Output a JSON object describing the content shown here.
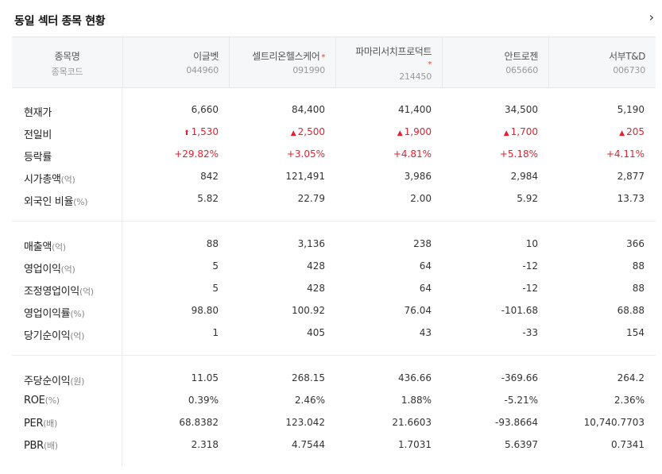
{
  "title": "동일 섹터 종목 현황",
  "header": {
    "label_name": "종목명",
    "label_code": "종목코드",
    "stocks": [
      {
        "name": "이글벳",
        "code": "044960",
        "star": false
      },
      {
        "name": "셀트리온헬스케어",
        "code": "091990",
        "star": true
      },
      {
        "name": "파마리서치프로덕트",
        "code": "214450",
        "star": true
      },
      {
        "name": "안트로젠",
        "code": "065660",
        "star": false
      },
      {
        "name": "서부T&D",
        "code": "006730",
        "star": false
      }
    ],
    "star_symbol": "*"
  },
  "rows": [
    {
      "label": "현재가",
      "unit": "",
      "values": [
        "6,660",
        "84,400",
        "41,400",
        "34,500",
        "5,190"
      ]
    },
    {
      "label": "전일비",
      "unit": "",
      "red": true,
      "symbols": [
        "⬆",
        "▲",
        "▲",
        "▲",
        "▲"
      ],
      "values": [
        "1,530",
        "2,500",
        "1,900",
        "1,700",
        "205"
      ]
    },
    {
      "label": "등락률",
      "unit": "",
      "red": true,
      "values": [
        "+29.82%",
        "+3.05%",
        "+4.81%",
        "+5.18%",
        "+4.11%"
      ]
    },
    {
      "label": "시가총액",
      "unit": "(억)",
      "values": [
        "842",
        "121,491",
        "3,986",
        "2,984",
        "2,877"
      ]
    },
    {
      "label": "외국인 비율",
      "unit": "(%)",
      "values": [
        "5.82",
        "22.79",
        "2.00",
        "5.92",
        "13.73"
      ]
    },
    {
      "label": "매출액",
      "unit": "(억)",
      "values": [
        "88",
        "3,136",
        "238",
        "10",
        "366"
      ]
    },
    {
      "label": "영업이익",
      "unit": "(억)",
      "values": [
        "5",
        "428",
        "64",
        "-12",
        "88"
      ]
    },
    {
      "label": "조정영업이익",
      "unit": "(억)",
      "values": [
        "5",
        "428",
        "64",
        "-12",
        "88"
      ]
    },
    {
      "label": "영업이익률",
      "unit": "(%)",
      "values": [
        "98.80",
        "100.92",
        "76.04",
        "-101.68",
        "68.88"
      ]
    },
    {
      "label": "당기순이익",
      "unit": "(억)",
      "values": [
        "1",
        "405",
        "43",
        "-33",
        "154"
      ]
    },
    {
      "label": "주당순이익",
      "unit": "(원)",
      "values": [
        "11.05",
        "268.15",
        "436.66",
        "-369.66",
        "264.2"
      ]
    },
    {
      "label": "ROE",
      "unit": "(%)",
      "values": [
        "0.39%",
        "2.46%",
        "1.88%",
        "-5.21%",
        "2.36%"
      ]
    },
    {
      "label": "PER",
      "unit": "(배)",
      "values": [
        "68.8382",
        "123.042",
        "21.6603",
        "-93.8664",
        "10,740.7703"
      ]
    },
    {
      "label": "PBR",
      "unit": "(배)",
      "values": [
        "2.318",
        "4.7544",
        "1.7031",
        "5.6397",
        "0.7341"
      ]
    }
  ],
  "colors": {
    "up": "#e5202e",
    "header_bg": "#f6f7f9",
    "star": "#e5492f"
  }
}
